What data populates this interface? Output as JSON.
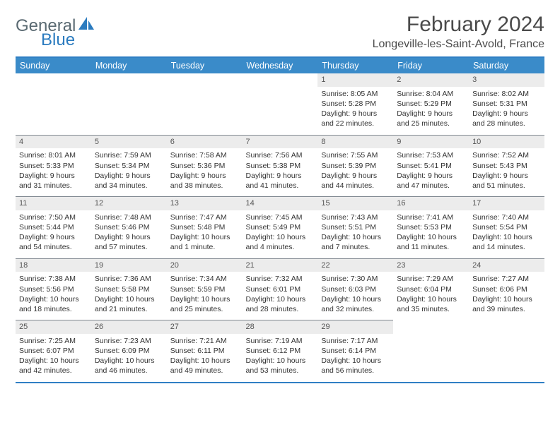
{
  "logo": {
    "word1": "General",
    "word2": "Blue"
  },
  "title": "February 2024",
  "location": "Longeville-les-Saint-Avold, France",
  "colors": {
    "header_bg": "#3a8bc9",
    "border": "#2f7fc4",
    "daynum_bg": "#ececec",
    "logo_gray": "#5a6a72",
    "logo_blue": "#2b7bbf"
  },
  "weekdays": [
    "Sunday",
    "Monday",
    "Tuesday",
    "Wednesday",
    "Thursday",
    "Friday",
    "Saturday"
  ],
  "weeks": [
    [
      null,
      null,
      null,
      null,
      {
        "n": "1",
        "sunrise": "Sunrise: 8:05 AM",
        "sunset": "Sunset: 5:28 PM",
        "day1": "Daylight: 9 hours",
        "day2": "and 22 minutes."
      },
      {
        "n": "2",
        "sunrise": "Sunrise: 8:04 AM",
        "sunset": "Sunset: 5:29 PM",
        "day1": "Daylight: 9 hours",
        "day2": "and 25 minutes."
      },
      {
        "n": "3",
        "sunrise": "Sunrise: 8:02 AM",
        "sunset": "Sunset: 5:31 PM",
        "day1": "Daylight: 9 hours",
        "day2": "and 28 minutes."
      }
    ],
    [
      {
        "n": "4",
        "sunrise": "Sunrise: 8:01 AM",
        "sunset": "Sunset: 5:33 PM",
        "day1": "Daylight: 9 hours",
        "day2": "and 31 minutes."
      },
      {
        "n": "5",
        "sunrise": "Sunrise: 7:59 AM",
        "sunset": "Sunset: 5:34 PM",
        "day1": "Daylight: 9 hours",
        "day2": "and 34 minutes."
      },
      {
        "n": "6",
        "sunrise": "Sunrise: 7:58 AM",
        "sunset": "Sunset: 5:36 PM",
        "day1": "Daylight: 9 hours",
        "day2": "and 38 minutes."
      },
      {
        "n": "7",
        "sunrise": "Sunrise: 7:56 AM",
        "sunset": "Sunset: 5:38 PM",
        "day1": "Daylight: 9 hours",
        "day2": "and 41 minutes."
      },
      {
        "n": "8",
        "sunrise": "Sunrise: 7:55 AM",
        "sunset": "Sunset: 5:39 PM",
        "day1": "Daylight: 9 hours",
        "day2": "and 44 minutes."
      },
      {
        "n": "9",
        "sunrise": "Sunrise: 7:53 AM",
        "sunset": "Sunset: 5:41 PM",
        "day1": "Daylight: 9 hours",
        "day2": "and 47 minutes."
      },
      {
        "n": "10",
        "sunrise": "Sunrise: 7:52 AM",
        "sunset": "Sunset: 5:43 PM",
        "day1": "Daylight: 9 hours",
        "day2": "and 51 minutes."
      }
    ],
    [
      {
        "n": "11",
        "sunrise": "Sunrise: 7:50 AM",
        "sunset": "Sunset: 5:44 PM",
        "day1": "Daylight: 9 hours",
        "day2": "and 54 minutes."
      },
      {
        "n": "12",
        "sunrise": "Sunrise: 7:48 AM",
        "sunset": "Sunset: 5:46 PM",
        "day1": "Daylight: 9 hours",
        "day2": "and 57 minutes."
      },
      {
        "n": "13",
        "sunrise": "Sunrise: 7:47 AM",
        "sunset": "Sunset: 5:48 PM",
        "day1": "Daylight: 10 hours",
        "day2": "and 1 minute."
      },
      {
        "n": "14",
        "sunrise": "Sunrise: 7:45 AM",
        "sunset": "Sunset: 5:49 PM",
        "day1": "Daylight: 10 hours",
        "day2": "and 4 minutes."
      },
      {
        "n": "15",
        "sunrise": "Sunrise: 7:43 AM",
        "sunset": "Sunset: 5:51 PM",
        "day1": "Daylight: 10 hours",
        "day2": "and 7 minutes."
      },
      {
        "n": "16",
        "sunrise": "Sunrise: 7:41 AM",
        "sunset": "Sunset: 5:53 PM",
        "day1": "Daylight: 10 hours",
        "day2": "and 11 minutes."
      },
      {
        "n": "17",
        "sunrise": "Sunrise: 7:40 AM",
        "sunset": "Sunset: 5:54 PM",
        "day1": "Daylight: 10 hours",
        "day2": "and 14 minutes."
      }
    ],
    [
      {
        "n": "18",
        "sunrise": "Sunrise: 7:38 AM",
        "sunset": "Sunset: 5:56 PM",
        "day1": "Daylight: 10 hours",
        "day2": "and 18 minutes."
      },
      {
        "n": "19",
        "sunrise": "Sunrise: 7:36 AM",
        "sunset": "Sunset: 5:58 PM",
        "day1": "Daylight: 10 hours",
        "day2": "and 21 minutes."
      },
      {
        "n": "20",
        "sunrise": "Sunrise: 7:34 AM",
        "sunset": "Sunset: 5:59 PM",
        "day1": "Daylight: 10 hours",
        "day2": "and 25 minutes."
      },
      {
        "n": "21",
        "sunrise": "Sunrise: 7:32 AM",
        "sunset": "Sunset: 6:01 PM",
        "day1": "Daylight: 10 hours",
        "day2": "and 28 minutes."
      },
      {
        "n": "22",
        "sunrise": "Sunrise: 7:30 AM",
        "sunset": "Sunset: 6:03 PM",
        "day1": "Daylight: 10 hours",
        "day2": "and 32 minutes."
      },
      {
        "n": "23",
        "sunrise": "Sunrise: 7:29 AM",
        "sunset": "Sunset: 6:04 PM",
        "day1": "Daylight: 10 hours",
        "day2": "and 35 minutes."
      },
      {
        "n": "24",
        "sunrise": "Sunrise: 7:27 AM",
        "sunset": "Sunset: 6:06 PM",
        "day1": "Daylight: 10 hours",
        "day2": "and 39 minutes."
      }
    ],
    [
      {
        "n": "25",
        "sunrise": "Sunrise: 7:25 AM",
        "sunset": "Sunset: 6:07 PM",
        "day1": "Daylight: 10 hours",
        "day2": "and 42 minutes."
      },
      {
        "n": "26",
        "sunrise": "Sunrise: 7:23 AM",
        "sunset": "Sunset: 6:09 PM",
        "day1": "Daylight: 10 hours",
        "day2": "and 46 minutes."
      },
      {
        "n": "27",
        "sunrise": "Sunrise: 7:21 AM",
        "sunset": "Sunset: 6:11 PM",
        "day1": "Daylight: 10 hours",
        "day2": "and 49 minutes."
      },
      {
        "n": "28",
        "sunrise": "Sunrise: 7:19 AM",
        "sunset": "Sunset: 6:12 PM",
        "day1": "Daylight: 10 hours",
        "day2": "and 53 minutes."
      },
      {
        "n": "29",
        "sunrise": "Sunrise: 7:17 AM",
        "sunset": "Sunset: 6:14 PM",
        "day1": "Daylight: 10 hours",
        "day2": "and 56 minutes."
      },
      null,
      null
    ]
  ]
}
